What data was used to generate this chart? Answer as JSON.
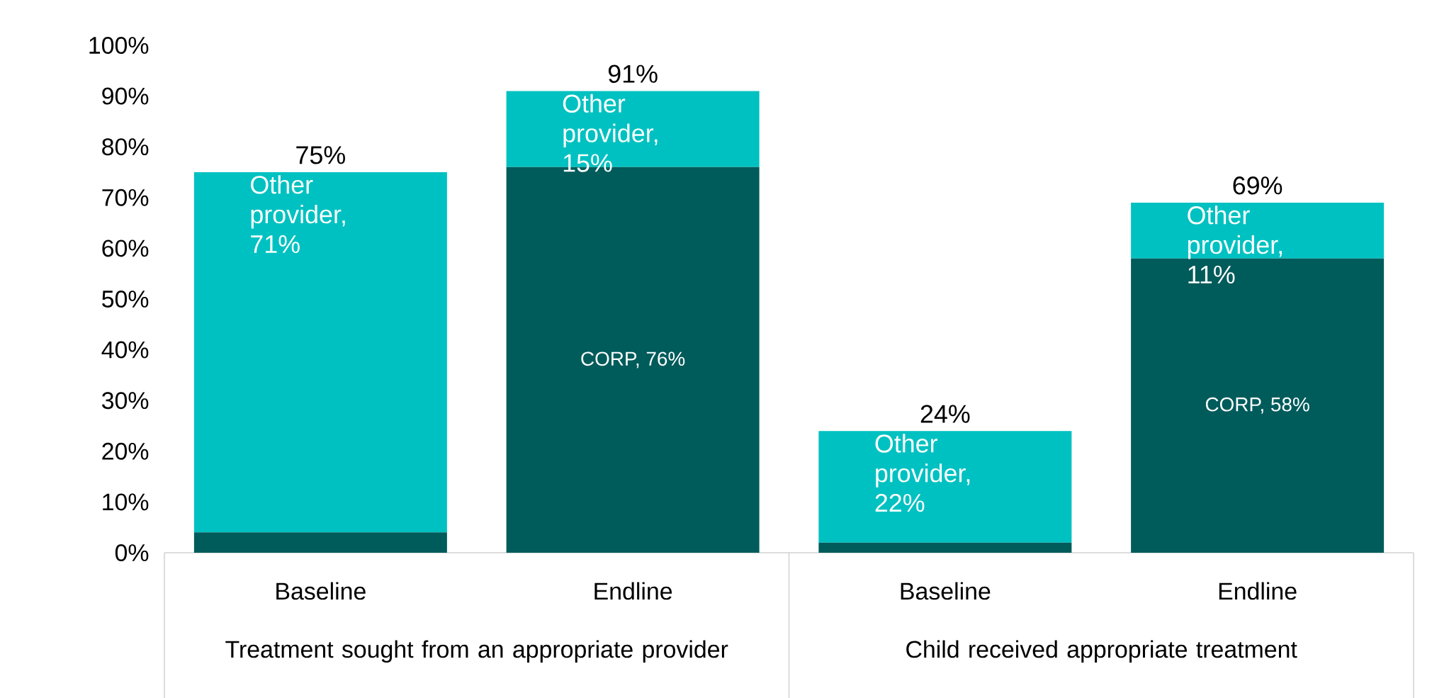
{
  "chart_data": {
    "type": "bar",
    "stacked": true,
    "categories": [
      "Baseline",
      "Endline",
      "Baseline",
      "Endline"
    ],
    "series": [
      {
        "color": "#005b5b",
        "values": [
          4,
          76,
          2,
          58
        ],
        "value_labels": [
          null,
          "CORP, 76%",
          null,
          "CORP, 58%"
        ]
      },
      {
        "color": "#00c1c1",
        "values": [
          71,
          15,
          22,
          11
        ],
        "value_labels": [
          "Other provider, 71%",
          "Other provider, 15%",
          "Other provider, 22%",
          "Other provider, 11%"
        ]
      }
    ],
    "totals": [
      "75%",
      "91%",
      "24%",
      "69%"
    ],
    "annotations": [
      "Treatment sought from an appropriate provider",
      "Child received appropriate treatment"
    ],
    "ylim": [
      0,
      100
    ],
    "yticks": [
      {
        "value": 0,
        "label": "0%"
      },
      {
        "value": 10,
        "label": "10%"
      },
      {
        "value": 20,
        "label": "20%"
      },
      {
        "value": 30,
        "label": "30%"
      },
      {
        "value": 40,
        "label": "40%"
      },
      {
        "value": 50,
        "label": "50%"
      },
      {
        "value": 60,
        "label": "60%"
      },
      {
        "value": 70,
        "label": "70%"
      },
      {
        "value": 80,
        "label": "80%"
      },
      {
        "value": 90,
        "label": "90%"
      },
      {
        "value": 100,
        "label": "100%"
      }
    ],
    "grid": false
  }
}
